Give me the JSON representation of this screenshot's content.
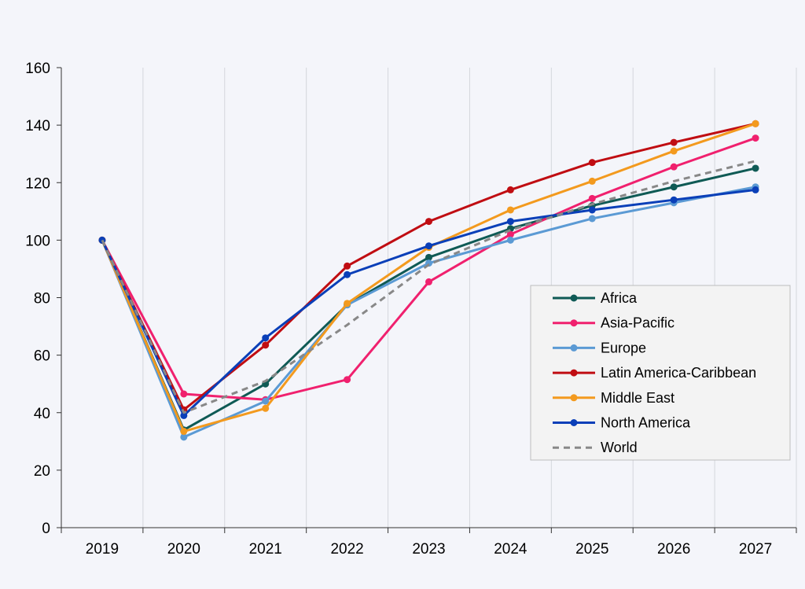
{
  "chart_data": {
    "type": "line",
    "title": "",
    "xlabel": "",
    "ylabel": "",
    "ylim": [
      0,
      160
    ],
    "yticks": [
      0,
      20,
      40,
      60,
      80,
      100,
      120,
      140,
      160
    ],
    "categories": [
      "2019",
      "2020",
      "2021",
      "2022",
      "2023",
      "2024",
      "2025",
      "2026",
      "2027"
    ],
    "grid": "vertical",
    "legend_position": "right",
    "series": [
      {
        "name": "Africa",
        "color": "#0f5a55",
        "dashed": false,
        "markers": true,
        "values": [
          100,
          34,
          50,
          77.5,
          94,
          104,
          112,
          118.5,
          125
        ]
      },
      {
        "name": "Asia-Pacific",
        "color": "#f0206e",
        "dashed": false,
        "markers": true,
        "values": [
          100,
          46.5,
          44.5,
          51.5,
          85.5,
          102,
          114.5,
          125.5,
          135.5
        ]
      },
      {
        "name": "Europe",
        "color": "#5b9ad4",
        "dashed": false,
        "markers": true,
        "values": [
          100,
          31.5,
          44,
          77.5,
          92,
          100,
          107.5,
          113,
          118.5
        ]
      },
      {
        "name": "Latin America-Caribbean",
        "color": "#c00d12",
        "dashed": false,
        "markers": true,
        "values": [
          100,
          41,
          63.5,
          91,
          106.5,
          117.5,
          127,
          134,
          140.5
        ]
      },
      {
        "name": "Middle East",
        "color": "#f39a1e",
        "dashed": false,
        "markers": true,
        "values": [
          100,
          33.5,
          41.5,
          78,
          97.5,
          110.5,
          120.5,
          131,
          140.5
        ]
      },
      {
        "name": "North America",
        "color": "#0a3fb8",
        "dashed": false,
        "markers": true,
        "values": [
          100,
          39,
          66,
          88,
          98,
          106.5,
          110.5,
          114,
          117.5
        ]
      },
      {
        "name": "World",
        "color": "#888888",
        "dashed": true,
        "markers": false,
        "values": [
          100,
          40,
          51,
          70.5,
          91.5,
          103.5,
          112.5,
          120.5,
          127.5
        ]
      }
    ]
  }
}
